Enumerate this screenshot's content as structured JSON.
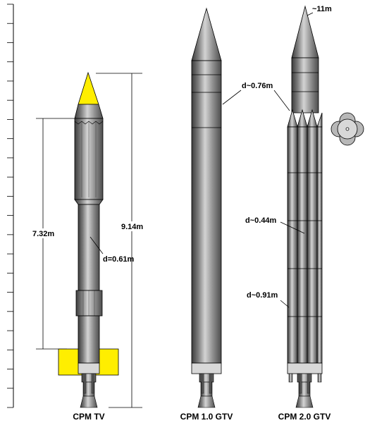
{
  "colors": {
    "body_gradient": [
      "#3c3c3c",
      "#7c7c7c",
      "#d4d4d4",
      "#8e8e8e",
      "#4c4c4c"
    ],
    "nose_tv": "#ffee00",
    "fins_tv": "#ffee00",
    "collar": "#d8d8d8",
    "outline": "#000000"
  },
  "tv": {
    "caption": "CPM TV",
    "height_label": "7.32m",
    "total_label": "9.14m",
    "diameter_label": "d=0.61m"
  },
  "gtv1": {
    "caption": "CPM 1.0 GTV",
    "diameter_label": "d~0.76m"
  },
  "gtv2": {
    "caption": "CPM 2.0 GTV",
    "height_label": "~11m",
    "booster_diameter_label": "d~0.44m",
    "core_diameter_label": "d~0.91m"
  }
}
